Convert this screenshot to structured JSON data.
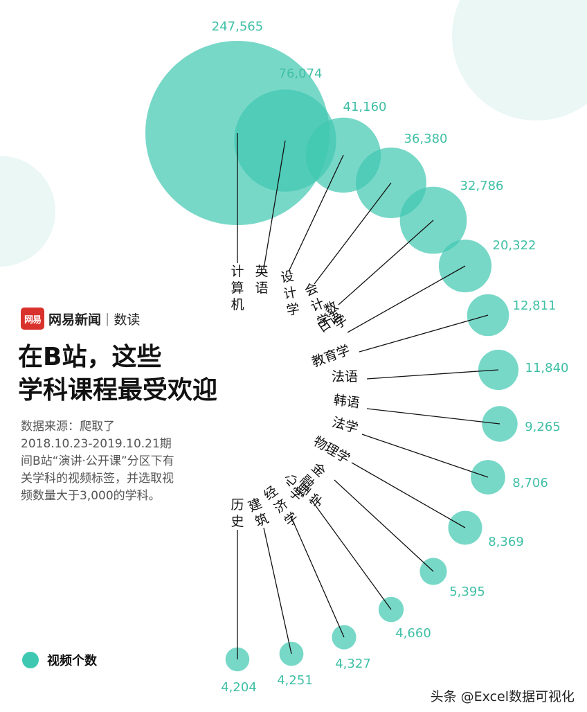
{
  "brand": {
    "logo_text": "网易",
    "name": "网易新闻",
    "separator": "|",
    "column": "数读"
  },
  "title_lines": [
    "在B站，这些",
    "学科课程最受欢迎"
  ],
  "source_text": "数据来源：爬取了2018.10.23-2019.10.21期间B站“演讲·公开课”分区下有关学科的视频标签，并选取视频数量大于3,000的学科。",
  "legend": {
    "label": "视频个数",
    "color": "#3fc8b1"
  },
  "watermark": "头条 @Excel数据可视化",
  "colors": {
    "bubble": "#3fc8b1",
    "value_text": "#3fbfa5",
    "leader": "#111111"
  },
  "chart_data": {
    "type": "bubble",
    "series_name": "视频个数",
    "categories": [
      "计算机",
      "英语",
      "设计学",
      "会计学",
      "数学",
      "日语",
      "教育学",
      "法语",
      "韩语",
      "法学",
      "物理学",
      "金融学",
      "心理学",
      "经济学",
      "建筑",
      "历史"
    ],
    "values": [
      247565,
      76074,
      41160,
      36380,
      32786,
      20322,
      12811,
      11840,
      9265,
      8706,
      8369,
      5395,
      4660,
      4327,
      4251,
      4204
    ],
    "value_labels": [
      "247,565",
      "76,074",
      "41,160",
      "36,380",
      "32,786",
      "20,322",
      "12,811",
      "11,840",
      "9,265",
      "8,706",
      "8,369",
      "5,395",
      "4,660",
      "4,327",
      "4,251",
      "4,204"
    ]
  }
}
